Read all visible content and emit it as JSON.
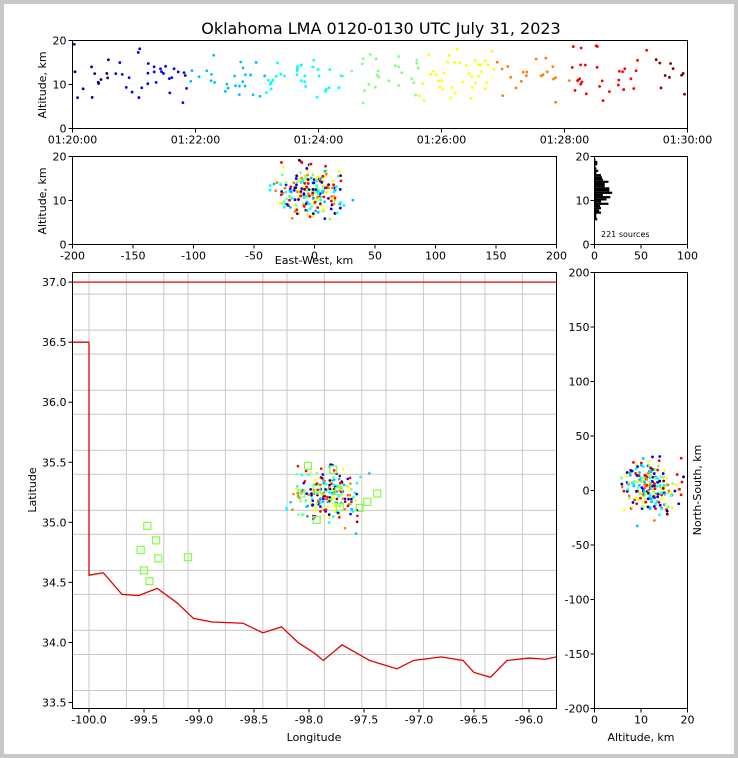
{
  "title": "Oklahoma LMA 0120-0130 UTC July 31, 2023",
  "sources_label": "221 sources",
  "panels": {
    "time_height": {
      "ylabel": "Altitude, km",
      "x_ticks": [
        "01:20:00",
        "01:22:00",
        "01:24:00",
        "01:26:00",
        "01:28:00",
        "01:30:00"
      ],
      "y_ticks": [
        "0",
        "10",
        "20"
      ]
    },
    "ew_height": {
      "xlabel": "East-West, km",
      "ylabel": "Altitude, km",
      "x_ticks": [
        "-200",
        "-150",
        "-100",
        "-50",
        "0",
        "50",
        "100",
        "150",
        "200"
      ],
      "y_ticks": [
        "0",
        "10",
        "20"
      ]
    },
    "hist": {
      "x_ticks": [
        "0",
        "50",
        "100"
      ],
      "y_ticks": [
        "0",
        "10",
        "20"
      ]
    },
    "plan": {
      "xlabel": "Longitude",
      "ylabel": "Latitude",
      "x_ticks": [
        "-100.0",
        "-99.5",
        "-99.0",
        "-98.5",
        "-98.0",
        "-97.5",
        "-97.0",
        "-96.5",
        "-96.0"
      ],
      "y_ticks": [
        "37.0",
        "36.5",
        "36.0",
        "35.5",
        "35.0",
        "34.5",
        "34.0",
        "33.5"
      ]
    },
    "ns_height": {
      "xlabel": "Altitude, km",
      "ylabel": "North-South, km",
      "x_ticks": [
        "0",
        "10",
        "20"
      ],
      "y_ticks": [
        "200",
        "150",
        "100",
        "50",
        "0",
        "-50",
        "-100",
        "-150",
        "-200"
      ]
    }
  },
  "chart_data": [
    {
      "type": "scatter",
      "name": "time-height",
      "xlim_minutes_after_0120": [
        0,
        10
      ],
      "ylim": [
        0,
        20
      ],
      "color_by": "time",
      "colormap": [
        "#00008b",
        "#0000ff",
        "#00bfff",
        "#00ffff",
        "#80ff80",
        "#ffff00",
        "#ff8000",
        "#ff0000",
        "#800000"
      ]
    },
    {
      "type": "scatter",
      "name": "east-west vs altitude",
      "xlim": [
        -200,
        200
      ],
      "ylim": [
        0,
        20
      ]
    },
    {
      "type": "bar",
      "name": "altitude histogram",
      "xlim": [
        0,
        100
      ],
      "ylim": [
        0,
        20
      ],
      "total_sources": 221
    },
    {
      "type": "scatter",
      "name": "plan view",
      "xlim": [
        -100.15,
        -95.75
      ],
      "ylim": [
        33.45,
        37.08
      ],
      "stations": [
        [
          -99.47,
          34.97
        ],
        [
          -99.39,
          34.85
        ],
        [
          -99.37,
          34.7
        ],
        [
          -99.53,
          34.77
        ],
        [
          -99.5,
          34.6
        ],
        [
          -99.45,
          34.51
        ],
        [
          -99.1,
          34.71
        ],
        [
          -98.01,
          35.47
        ],
        [
          -97.78,
          35.44
        ],
        [
          -97.93,
          35.28
        ],
        [
          -98.07,
          35.24
        ],
        [
          -97.73,
          35.26
        ],
        [
          -97.54,
          35.12
        ],
        [
          -97.38,
          35.24
        ],
        [
          -97.93,
          35.02
        ],
        [
          -97.72,
          35.13
        ],
        [
          -97.47,
          35.17
        ]
      ],
      "state_boundary": [
        [
          -100.0,
          36.5
        ],
        [
          -100.0,
          36.5
        ],
        [
          -100.0,
          34.56
        ],
        [
          -99.87,
          34.58
        ],
        [
          -99.7,
          34.4
        ],
        [
          -99.55,
          34.39
        ],
        [
          -99.38,
          34.45
        ],
        [
          -99.2,
          34.33
        ],
        [
          -99.05,
          34.2
        ],
        [
          -98.88,
          34.17
        ],
        [
          -98.6,
          34.16
        ],
        [
          -98.42,
          34.08
        ],
        [
          -98.25,
          34.13
        ],
        [
          -98.1,
          34.0
        ],
        [
          -97.95,
          33.91
        ],
        [
          -97.87,
          33.85
        ],
        [
          -97.7,
          33.98
        ],
        [
          -97.45,
          33.85
        ],
        [
          -97.2,
          33.78
        ],
        [
          -97.05,
          33.85
        ],
        [
          -96.8,
          33.88
        ],
        [
          -96.6,
          33.85
        ],
        [
          -96.5,
          33.75
        ],
        [
          -96.35,
          33.71
        ],
        [
          -96.2,
          33.85
        ],
        [
          -96.0,
          33.87
        ],
        [
          -95.85,
          33.86
        ],
        [
          -95.75,
          33.88
        ]
      ]
    },
    {
      "type": "scatter",
      "name": "altitude vs north-south",
      "xlim": [
        0,
        20
      ],
      "ylim": [
        -200,
        200
      ]
    }
  ],
  "colors": {
    "state_boundary": "#e00000",
    "county_lines": "#c8c8c8",
    "station_marker": "#80ff40",
    "frame": "#c8c8c8"
  }
}
